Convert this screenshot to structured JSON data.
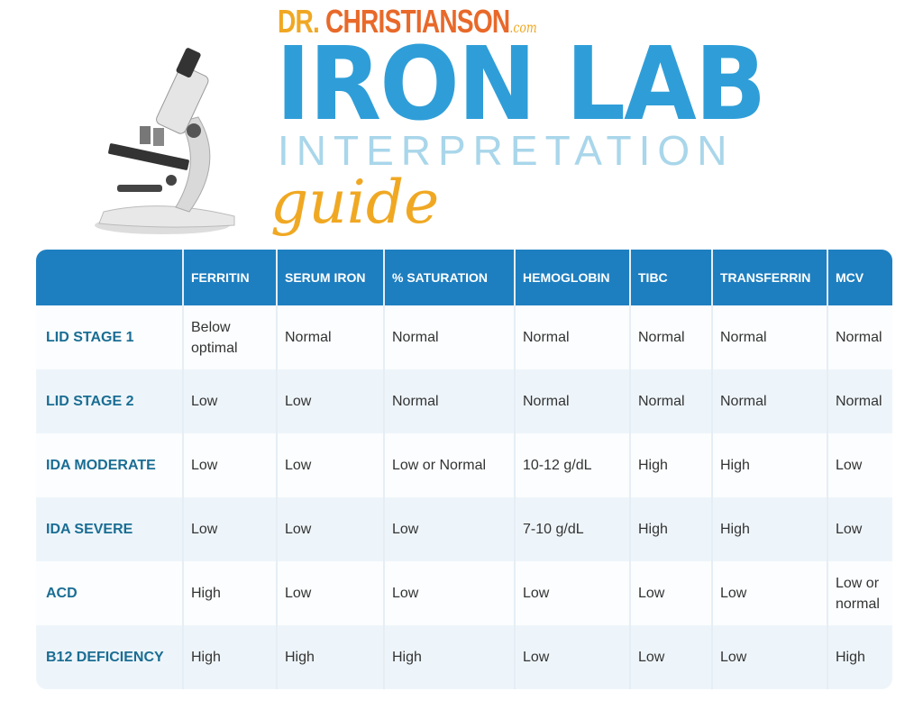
{
  "brand": {
    "dr": "DR.",
    "name": "CHRISTIANSON",
    "tld": ".com"
  },
  "title": "IRON LAB",
  "subtitle": "INTERPRETATION",
  "script": "guide",
  "table": {
    "headers": [
      "",
      "FERRITIN",
      "SERUM IRON",
      "% SATURATION",
      "HEMOGLOBIN",
      "TIBC",
      "TRANSFERRIN",
      "MCV"
    ],
    "rows": [
      [
        "LID STAGE 1",
        "Below optimal",
        "Normal",
        "Normal",
        "Normal",
        "Normal",
        "Normal",
        "Normal"
      ],
      [
        "LID STAGE 2",
        "Low",
        "Low",
        "Normal",
        "Normal",
        "Normal",
        "Normal",
        "Normal"
      ],
      [
        "IDA MODERATE",
        "Low",
        "Low",
        "Low or Normal",
        "10-12 g/dL",
        "High",
        "High",
        "Low"
      ],
      [
        "IDA SEVERE",
        "Low",
        "Low",
        "Low",
        "7-10 g/dL",
        "High",
        "High",
        "Low"
      ],
      [
        "ACD",
        "High",
        "Low",
        "Low",
        "Low",
        "Low",
        "Low",
        "Low or normal"
      ],
      [
        "B12 DEFICIENCY",
        "High",
        "High",
        "High",
        "Low",
        "Low",
        "Low",
        "High"
      ]
    ]
  }
}
